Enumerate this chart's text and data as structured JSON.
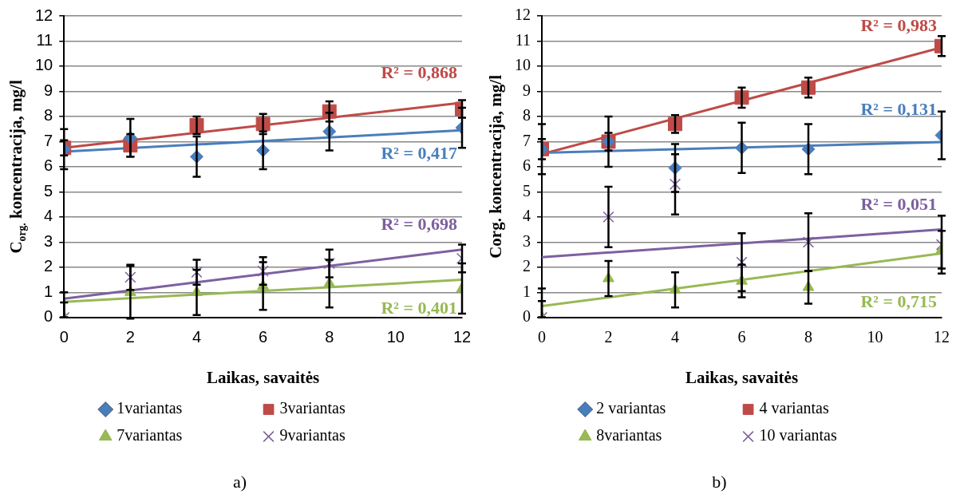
{
  "chart_data": [
    {
      "type": "scatter",
      "xlabel": "Laikas, savaitės",
      "ylabel": "C$_{org.}$ koncentracija, mg/l",
      "xlim": [
        0,
        12
      ],
      "xticks": [
        0,
        2,
        4,
        6,
        8,
        10,
        12
      ],
      "ylim": [
        0,
        12
      ],
      "yticks": [
        0,
        1,
        2,
        3,
        4,
        5,
        6,
        7,
        8,
        9,
        10,
        11,
        12
      ],
      "grid": "y",
      "legend": "bottom",
      "x": [
        0,
        2,
        4,
        6,
        8,
        12
      ],
      "series": [
        {
          "name": "1variantas",
          "color": "#4a7ebb",
          "marker": "diamond",
          "values": [
            6.7,
            7.15,
            6.4,
            6.65,
            7.4,
            7.55
          ],
          "errors": [
            0.8,
            0.75,
            0.8,
            0.75,
            0.75,
            0.8
          ]
        },
        {
          "name": "3variantas",
          "color": "#be4b48",
          "marker": "square",
          "values": [
            6.75,
            6.85,
            7.65,
            7.7,
            8.2,
            8.3
          ],
          "errors": [
            0.3,
            0.45,
            0.35,
            0.4,
            0.4,
            0.35
          ]
        },
        {
          "name": "7variantas",
          "color": "#98b954",
          "marker": "triangle",
          "values": [
            0,
            1.0,
            1.0,
            1.25,
            1.35,
            1.15
          ],
          "errors": [
            [
              0,
              1.0
            ],
            1.05,
            0.9,
            0.95,
            0.95,
            1.0
          ]
        },
        {
          "name": "9variantas",
          "color": "#7d60a0",
          "marker": "cross",
          "values": [
            0,
            1.6,
            1.8,
            1.85,
            2.15,
            2.35
          ],
          "errors": [
            [
              0,
              0.6
            ],
            0.5,
            0.5,
            0.55,
            0.55,
            0.55
          ]
        },
        {
          "type": "line",
          "color": "#4a7ebb",
          "marker": "none",
          "values": [
            6.6,
            null,
            null,
            null,
            null,
            7.45
          ]
        },
        {
          "type": "line",
          "color": "#be4b48",
          "marker": "none",
          "values": [
            6.75,
            null,
            null,
            null,
            null,
            8.55
          ]
        },
        {
          "type": "line",
          "color": "#98b954",
          "marker": "none",
          "values": [
            0.62,
            null,
            null,
            null,
            null,
            1.5
          ]
        },
        {
          "type": "line",
          "color": "#7d60a0",
          "marker": "none",
          "values": [
            0.75,
            null,
            null,
            null,
            null,
            2.7
          ]
        }
      ],
      "annotations": [
        "R² = 0,417",
        "R² = 0,868",
        "R² = 0,401",
        "R² = 0,698",
        "a)"
      ]
    },
    {
      "type": "scatter",
      "xlabel": "Laikas, savaitės",
      "ylabel": "Corg. koncentracija, mg/l",
      "xlim": [
        0,
        12
      ],
      "xticks": [
        0,
        2,
        4,
        6,
        8,
        10,
        12
      ],
      "ylim": [
        0,
        12
      ],
      "yticks": [
        0,
        1,
        2,
        3,
        4,
        5,
        6,
        7,
        8,
        9,
        10,
        11,
        12
      ],
      "grid": "y",
      "legend": "bottom",
      "x": [
        0,
        2,
        4,
        6,
        8,
        12
      ],
      "series": [
        {
          "name": "2 variantas",
          "color": "#4a7ebb",
          "marker": "diamond",
          "values": [
            6.7,
            7.0,
            5.95,
            6.75,
            6.7,
            7.25
          ],
          "errors": [
            1.0,
            1.0,
            0.95,
            1.0,
            1.0,
            0.95
          ]
        },
        {
          "name": "4 variantas",
          "color": "#be4b48",
          "marker": "square",
          "values": [
            6.7,
            7.0,
            7.7,
            8.75,
            9.15,
            10.8
          ],
          "errors": [
            0.4,
            0.35,
            0.35,
            0.4,
            0.4,
            0.4
          ]
        },
        {
          "name": "8variantas",
          "color": "#98b954",
          "marker": "triangle",
          "values": [
            0,
            1.55,
            1.1,
            1.45,
            1.2,
            2.7
          ],
          "errors": [
            [
              0,
              0.65
            ],
            0.7,
            0.7,
            0.65,
            0.65,
            0.75
          ]
        },
        {
          "name": "10 variantas",
          "color": "#7d60a0",
          "marker": "cross",
          "values": [
            0,
            4.0,
            5.3,
            2.2,
            3.0,
            2.9
          ],
          "errors": [
            [
              0,
              1.15
            ],
            1.2,
            1.2,
            1.15,
            1.15,
            1.15
          ]
        },
        {
          "type": "line",
          "color": "#4a7ebb",
          "marker": "none",
          "values": [
            6.55,
            null,
            null,
            null,
            null,
            6.98
          ]
        },
        {
          "type": "line",
          "color": "#be4b48",
          "marker": "none",
          "values": [
            6.5,
            null,
            null,
            null,
            null,
            10.75
          ]
        },
        {
          "type": "line",
          "color": "#98b954",
          "marker": "none",
          "values": [
            0.45,
            null,
            null,
            null,
            null,
            2.55
          ]
        },
        {
          "type": "line",
          "color": "#7d60a0",
          "marker": "none",
          "values": [
            2.4,
            null,
            null,
            null,
            null,
            3.5
          ]
        }
      ],
      "annotations": [
        "R² = 0,131",
        "R² = 0,983",
        "R² = 0,715",
        "R² = 0,051",
        "b)"
      ]
    }
  ]
}
